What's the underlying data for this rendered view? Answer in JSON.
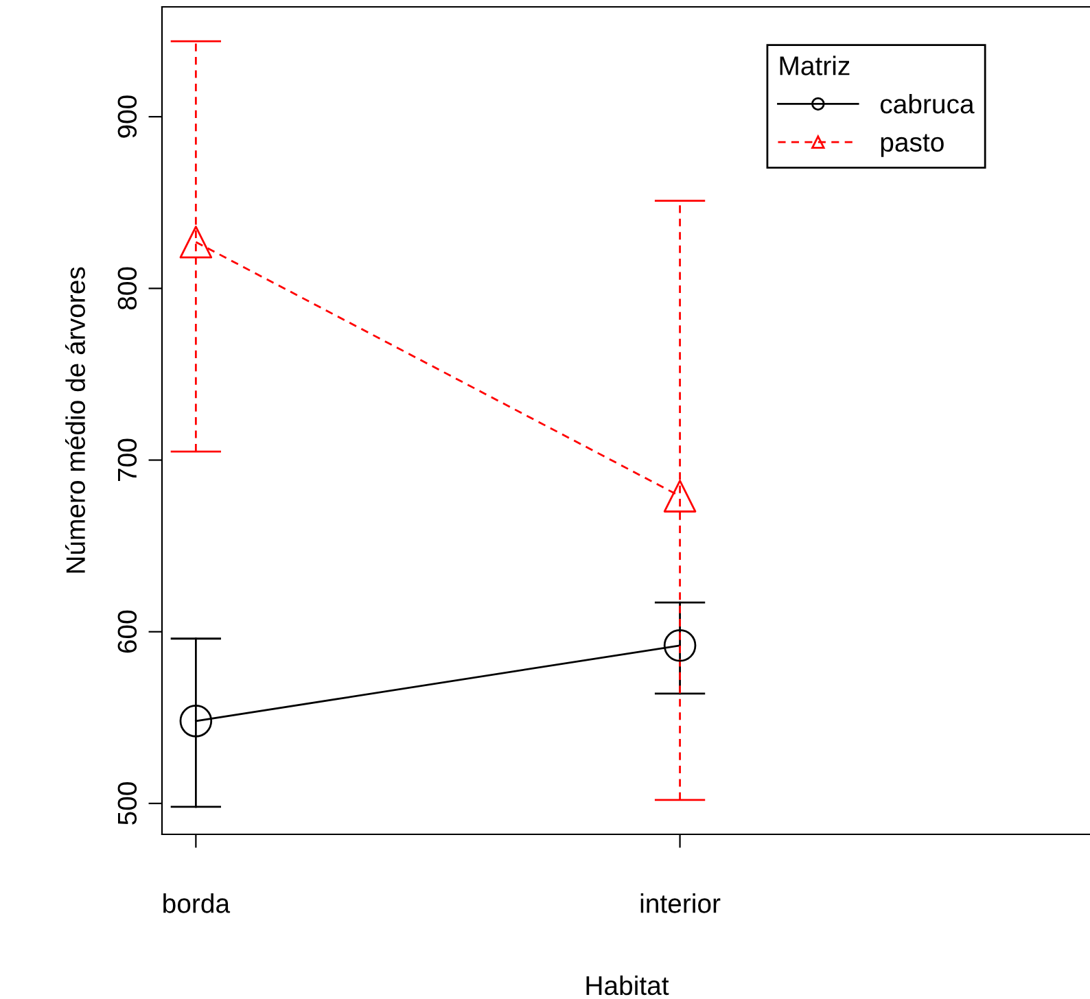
{
  "chart_data": {
    "type": "line",
    "xlabel": "Habitat",
    "ylabel": "Número médio de árvores",
    "legend_title": "Matriz",
    "categories": [
      "borda",
      "interior"
    ],
    "ylim": [
      482,
      964
    ],
    "yticks": [
      500,
      600,
      700,
      800,
      900
    ],
    "grid": false,
    "legend": "top right",
    "series": [
      {
        "name": "cabruca",
        "color": "#000000",
        "marker": "circle",
        "line_style": "solid",
        "values": [
          548,
          592
        ],
        "errors": [
          [
            498,
            596
          ],
          [
            564,
            617
          ]
        ]
      },
      {
        "name": "pasto",
        "color": "#ff0000",
        "marker": "triangle",
        "line_style": "dashed",
        "values": [
          827,
          679
        ],
        "errors": [
          [
            705,
            944
          ],
          [
            502,
            851
          ]
        ]
      }
    ]
  }
}
